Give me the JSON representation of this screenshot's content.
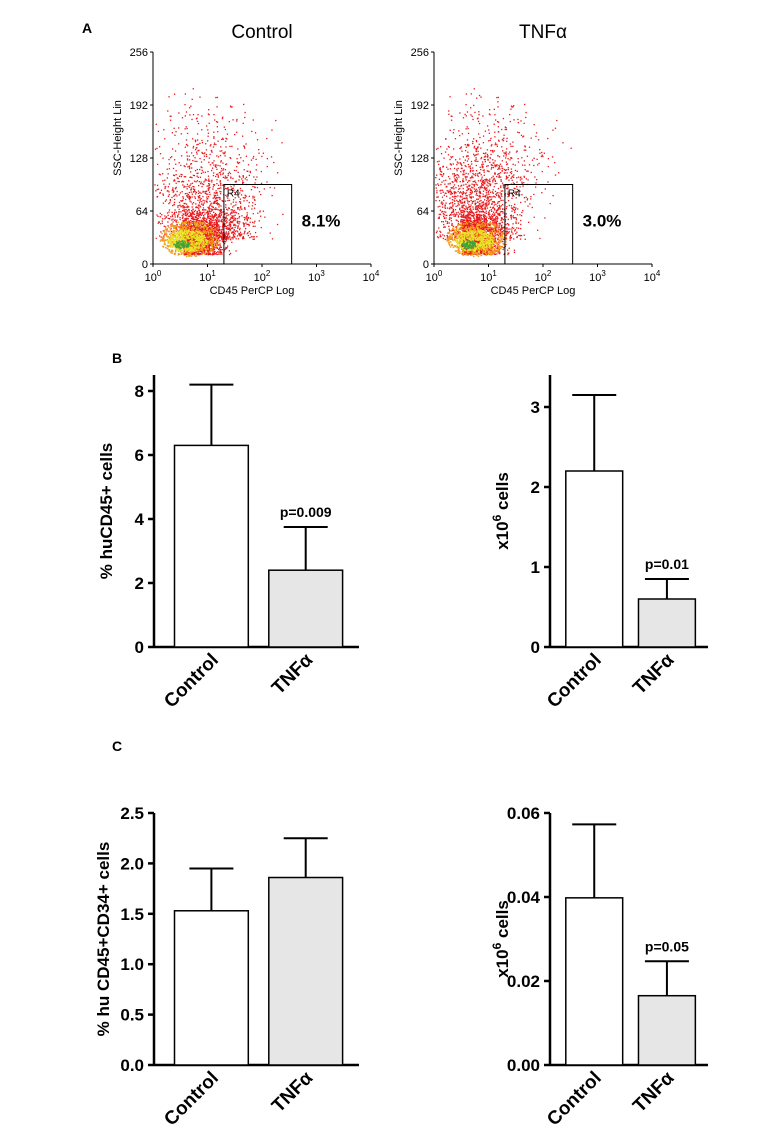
{
  "panel_labels": {
    "a": "A",
    "b": "B",
    "c": "C"
  },
  "chart_data": [
    {
      "id": "flow-control",
      "type": "scatter",
      "title": "Control",
      "xlabel": "CD45 PerCP Log",
      "ylabel": "SSC-Height Lin",
      "x_scale": "log",
      "xlim": [
        1,
        10000
      ],
      "ylim": [
        0,
        256
      ],
      "x_tick_labels": [
        {
          "base": "10",
          "exp": "0"
        },
        {
          "base": "10",
          "exp": "1"
        },
        {
          "base": "10",
          "exp": "2"
        },
        {
          "base": "10",
          "exp": "3"
        },
        {
          "base": "10",
          "exp": "4"
        }
      ],
      "y_ticks": [
        "0",
        "64",
        "128",
        "192",
        "256"
      ],
      "gate": {
        "label": "R4",
        "x_range": [
          20,
          350
        ],
        "y_range": [
          0,
          96
        ]
      },
      "gate_percent": "8.1%"
    },
    {
      "id": "flow-tnfa",
      "type": "scatter",
      "title": "TNFα",
      "xlabel": "CD45 PerCP Log",
      "ylabel": "SSC-Height Lin",
      "x_scale": "log",
      "xlim": [
        1,
        10000
      ],
      "ylim": [
        0,
        256
      ],
      "x_tick_labels": [
        {
          "base": "10",
          "exp": "0"
        },
        {
          "base": "10",
          "exp": "1"
        },
        {
          "base": "10",
          "exp": "2"
        },
        {
          "base": "10",
          "exp": "3"
        },
        {
          "base": "10",
          "exp": "4"
        }
      ],
      "y_ticks": [
        "0",
        "64",
        "128",
        "192",
        "256"
      ],
      "gate": {
        "label": "R4",
        "x_range": [
          20,
          350
        ],
        "y_range": [
          0,
          96
        ]
      },
      "gate_percent": "3.0%"
    },
    {
      "id": "b-percent",
      "type": "bar",
      "categories": [
        "Control",
        "TNFα"
      ],
      "values": [
        6.3,
        2.4
      ],
      "errors": [
        1.9,
        1.35
      ],
      "ylabel": "% huCD45+ cells",
      "ylabel_parts": {
        "pre": "% huCD45+ cells",
        "sup": "",
        "post": ""
      },
      "ylim": [
        0,
        8.5
      ],
      "y_ticks": [
        0,
        2,
        4,
        6,
        8
      ],
      "y_tick_labels": [
        "0",
        "2",
        "4",
        "6",
        "8"
      ],
      "annotations": [
        "",
        "p=0.009"
      ]
    },
    {
      "id": "b-count",
      "type": "bar",
      "categories": [
        "Control",
        "TNFα"
      ],
      "values": [
        2.2,
        0.6
      ],
      "errors": [
        0.95,
        0.25
      ],
      "ylabel": "x10^6 cells",
      "ylabel_parts": {
        "pre": "x10",
        "sup": "6",
        "post": " cells"
      },
      "ylim": [
        0,
        3.4
      ],
      "y_ticks": [
        0,
        1,
        2,
        3
      ],
      "y_tick_labels": [
        "0",
        "1",
        "2",
        "3"
      ],
      "annotations": [
        "",
        "p=0.01"
      ]
    },
    {
      "id": "c-percent",
      "type": "bar",
      "categories": [
        "Control",
        "TNFα"
      ],
      "values": [
        1.53,
        1.86
      ],
      "errors": [
        0.42,
        0.39
      ],
      "ylabel": "% hu CD45+CD34+ cells",
      "ylabel_parts": {
        "pre": "% hu CD45+CD34+ cells",
        "sup": "",
        "post": ""
      },
      "ylim": [
        0,
        2.5
      ],
      "y_ticks": [
        0,
        0.5,
        1.0,
        1.5,
        2.0,
        2.5
      ],
      "y_tick_labels": [
        "0.0",
        "0.5",
        "1.0",
        "1.5",
        "2.0",
        "2.5"
      ],
      "annotations": [
        "",
        ""
      ]
    },
    {
      "id": "c-count",
      "type": "bar",
      "categories": [
        "Control",
        "TNFα"
      ],
      "values": [
        0.0398,
        0.0165
      ],
      "errors": [
        0.0175,
        0.0082
      ],
      "ylabel": "x10^6 cells",
      "ylabel_parts": {
        "pre": "x10",
        "sup": "6",
        "post": " cells"
      },
      "ylim": [
        0,
        0.06
      ],
      "y_ticks": [
        0,
        0.02,
        0.04,
        0.06
      ],
      "y_tick_labels": [
        "0.00",
        "0.02",
        "0.04",
        "0.06"
      ],
      "annotations": [
        "",
        "p=0.05"
      ]
    }
  ],
  "colors": {
    "control_bar": "#ffffff",
    "tnfa_bar": "#e6e6e6",
    "axis": "#000000",
    "dot_red": "#e8191c",
    "dot_orange": "#f29d1a",
    "dot_yellow": "#e8e42a",
    "dot_green": "#3fa33c"
  }
}
